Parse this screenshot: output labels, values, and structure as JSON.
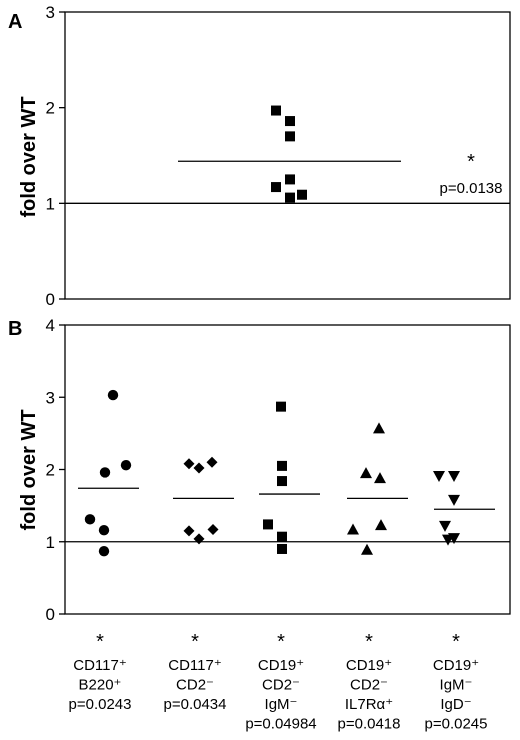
{
  "chart_data": [
    {
      "panel_label": "A",
      "type": "scatter",
      "ylabel": "fold over WT",
      "ylim": [
        0,
        3
      ],
      "yticks": [
        0,
        1,
        2,
        3
      ],
      "reference_line": 1,
      "groups": [
        {
          "marker": "square",
          "values": [
            1.97,
            1.86,
            1.7,
            1.25,
            1.17,
            1.06,
            1.09
          ],
          "mean": 1.44,
          "significance": "*",
          "p_label": "p=0.0138"
        }
      ]
    },
    {
      "panel_label": "B",
      "type": "scatter",
      "ylabel": "fold over WT",
      "ylim": [
        0,
        4
      ],
      "yticks": [
        0,
        1,
        2,
        3,
        4
      ],
      "reference_line": 1,
      "groups": [
        {
          "marker": "circle",
          "label_lines": [
            "CD117⁺",
            "B220⁺"
          ],
          "p_label": "p=0.0243",
          "significance": "*",
          "values": [
            3.03,
            1.96,
            2.06,
            1.31,
            1.16,
            0.87
          ],
          "mean": 1.74
        },
        {
          "marker": "diamond",
          "label_lines": [
            "CD117⁺",
            "CD2⁻"
          ],
          "p_label": "p=0.0434",
          "significance": "*",
          "values": [
            2.08,
            2.02,
            2.1,
            1.17,
            1.15,
            1.04
          ],
          "mean": 1.6
        },
        {
          "marker": "square",
          "label_lines": [
            "CD19⁺",
            "CD2⁻",
            "IgM⁻"
          ],
          "p_label": "p=0.04984",
          "significance": "*",
          "values": [
            2.87,
            2.05,
            1.84,
            1.24,
            1.07,
            0.9
          ],
          "mean": 1.66
        },
        {
          "marker": "triangle-up",
          "label_lines": [
            "CD19⁺",
            "CD2⁻",
            "IL7Rα⁺"
          ],
          "p_label": "p=0.0418",
          "significance": "*",
          "values": [
            2.57,
            1.95,
            1.88,
            1.23,
            1.17,
            0.89
          ],
          "mean": 1.6
        },
        {
          "marker": "triangle-down",
          "label_lines": [
            "CD19⁺",
            "IgM⁻",
            "IgD⁻"
          ],
          "p_label": "p=0.0245",
          "significance": "*",
          "values": [
            1.91,
            1.91,
            1.58,
            1.22,
            1.05,
            1.03
          ],
          "mean": 1.45
        }
      ]
    }
  ]
}
